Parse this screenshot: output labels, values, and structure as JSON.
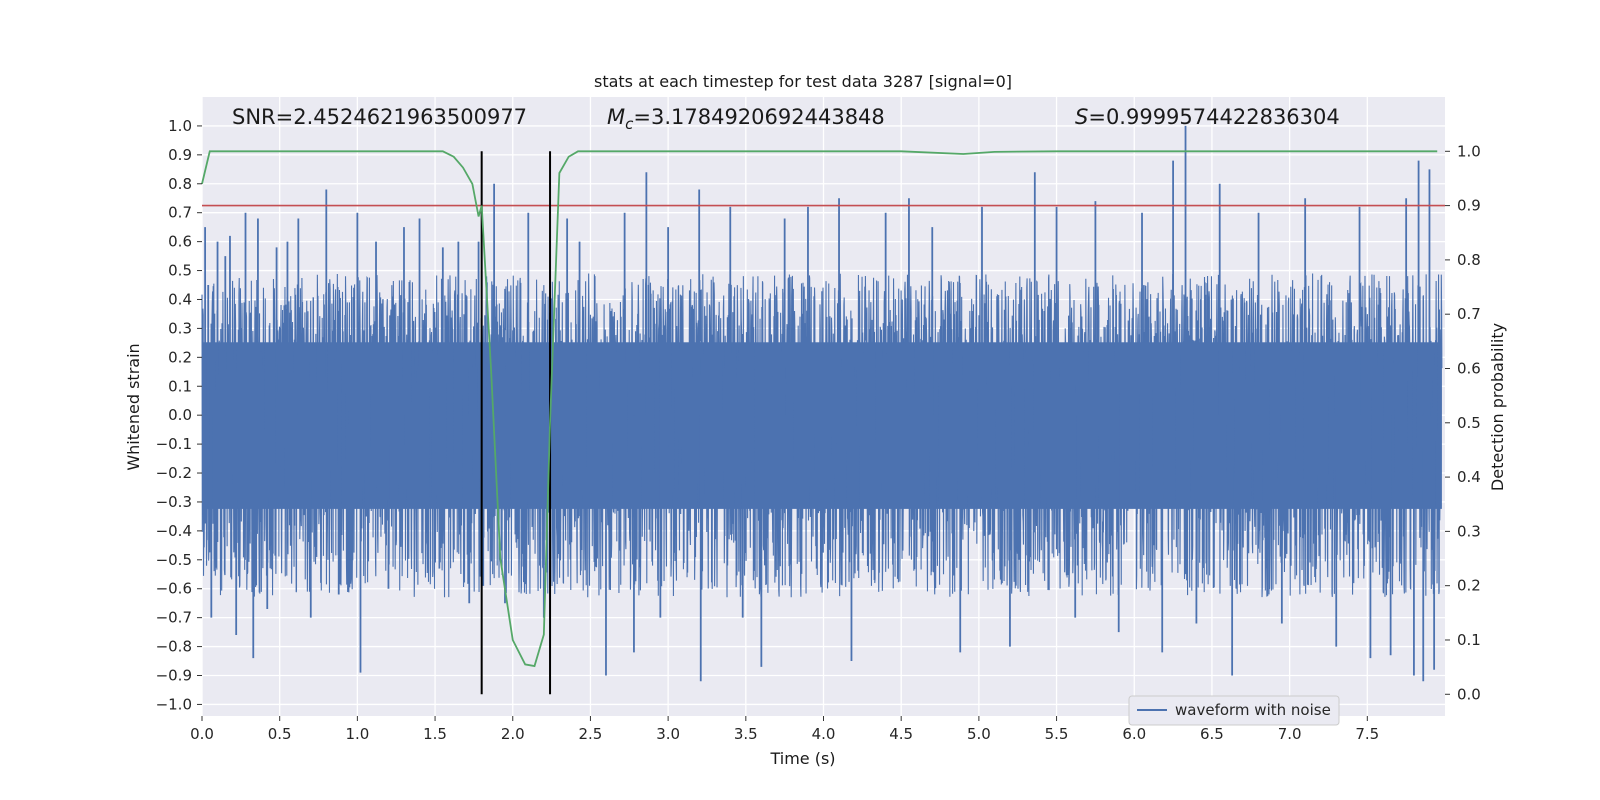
{
  "chart_data": {
    "type": "line",
    "title": "stats at each timestep for test data 3287 [signal=0]",
    "xlabel": "Time (s)",
    "ylabel": "Whitened strain",
    "y2label": "Detection probability",
    "xlim": [
      0.0,
      8.0
    ],
    "ylim": [
      -1.04,
      1.1
    ],
    "y2lim": [
      -0.04,
      1.1
    ],
    "x_ticks": [
      0.0,
      0.5,
      1.0,
      1.5,
      2.0,
      2.5,
      3.0,
      3.5,
      4.0,
      4.5,
      5.0,
      5.5,
      6.0,
      6.5,
      7.0,
      7.5
    ],
    "x_tick_labels": [
      "0.0",
      "0.5",
      "1.0",
      "1.5",
      "2.0",
      "2.5",
      "3.0",
      "3.5",
      "4.0",
      "4.5",
      "5.0",
      "5.5",
      "6.0",
      "6.5",
      "7.0",
      "7.5"
    ],
    "y_ticks": [
      -1.0,
      -0.9,
      -0.8,
      -0.7,
      -0.6,
      -0.5,
      -0.4,
      -0.3,
      -0.2,
      -0.1,
      0.0,
      0.1,
      0.2,
      0.3,
      0.4,
      0.5,
      0.6,
      0.7,
      0.8,
      0.9,
      1.0
    ],
    "y_tick_labels": [
      "−1.0",
      "−0.9",
      "−0.8",
      "−0.7",
      "−0.6",
      "−0.5",
      "−0.4",
      "−0.3",
      "−0.2",
      "−0.1",
      "0.0",
      "0.1",
      "0.2",
      "0.3",
      "0.4",
      "0.5",
      "0.6",
      "0.7",
      "0.8",
      "0.9",
      "1.0"
    ],
    "y2_ticks": [
      0.0,
      0.1,
      0.2,
      0.3,
      0.4,
      0.5,
      0.6,
      0.7,
      0.8,
      0.9,
      1.0
    ],
    "y2_tick_labels": [
      "0.0",
      "0.1",
      "0.2",
      "0.3",
      "0.4",
      "0.5",
      "0.6",
      "0.7",
      "0.8",
      "0.9",
      "1.0"
    ],
    "grid": true,
    "legend": {
      "position": "lower-right",
      "entries": [
        {
          "label": "waveform with noise",
          "color": "#4c72b0"
        }
      ]
    },
    "annotations": {
      "snr": "SNR=2.4524621963500977",
      "mc_symbol": "M",
      "mc_sub": "c",
      "mc_value": "=3.1784920692443848",
      "s_symbol": "S",
      "s_value": "=0.9999574422836304"
    },
    "threshold": {
      "axis": "y2",
      "value": 0.9,
      "color": "#c44e52"
    },
    "vertical_markers": {
      "axis": "x",
      "values": [
        1.8,
        2.24
      ],
      "color": "#000000"
    },
    "series": [
      {
        "name": "waveform with noise",
        "axis": "y",
        "color": "#4c72b0",
        "dense_samples": 4096,
        "envelope_upper": 0.35,
        "envelope_lower": -0.45,
        "peaks": [
          [
            0.02,
            0.65
          ],
          [
            0.04,
            0.45
          ],
          [
            0.06,
            -0.7
          ],
          [
            0.1,
            0.6
          ],
          [
            0.15,
            0.55
          ],
          [
            0.18,
            0.62
          ],
          [
            0.22,
            -0.76
          ],
          [
            0.28,
            0.7
          ],
          [
            0.33,
            -0.84
          ],
          [
            0.36,
            0.68
          ],
          [
            0.42,
            -0.67
          ],
          [
            0.48,
            0.58
          ],
          [
            0.55,
            0.6
          ],
          [
            0.62,
            0.68
          ],
          [
            0.7,
            -0.7
          ],
          [
            0.8,
            0.78
          ],
          [
            0.88,
            -0.62
          ],
          [
            1.0,
            0.7
          ],
          [
            1.02,
            -0.89
          ],
          [
            1.12,
            0.6
          ],
          [
            1.2,
            -0.6
          ],
          [
            1.3,
            0.65
          ],
          [
            1.4,
            0.68
          ],
          [
            1.55,
            0.58
          ],
          [
            1.65,
            0.6
          ],
          [
            1.72,
            -0.65
          ],
          [
            1.78,
            0.6
          ],
          [
            1.81,
            -0.59
          ],
          [
            1.88,
            0.8
          ],
          [
            1.95,
            -0.65
          ],
          [
            2.1,
            0.7
          ],
          [
            2.2,
            -0.7
          ],
          [
            2.35,
            0.68
          ],
          [
            2.43,
            0.6
          ],
          [
            2.6,
            -0.9
          ],
          [
            2.72,
            0.7
          ],
          [
            2.78,
            -0.82
          ],
          [
            2.86,
            0.84
          ],
          [
            2.95,
            -0.7
          ],
          [
            3.0,
            0.65
          ],
          [
            3.2,
            0.78
          ],
          [
            3.21,
            -0.92
          ],
          [
            3.4,
            0.72
          ],
          [
            3.48,
            -0.7
          ],
          [
            3.6,
            -0.87
          ],
          [
            3.75,
            0.68
          ],
          [
            3.9,
            0.72
          ],
          [
            4.1,
            0.75
          ],
          [
            4.18,
            -0.85
          ],
          [
            4.4,
            0.7
          ],
          [
            4.55,
            0.75
          ],
          [
            4.7,
            0.65
          ],
          [
            4.88,
            -0.82
          ],
          [
            5.02,
            0.72
          ],
          [
            5.2,
            -0.8
          ],
          [
            5.36,
            0.84
          ],
          [
            5.5,
            0.72
          ],
          [
            5.62,
            -0.7
          ],
          [
            5.75,
            0.74
          ],
          [
            5.9,
            -0.75
          ],
          [
            6.05,
            0.7
          ],
          [
            6.18,
            -0.82
          ],
          [
            6.25,
            0.88
          ],
          [
            6.33,
            1.0
          ],
          [
            6.4,
            -0.72
          ],
          [
            6.55,
            0.8
          ],
          [
            6.63,
            -0.9
          ],
          [
            6.8,
            0.7
          ],
          [
            6.95,
            -0.72
          ],
          [
            7.1,
            0.75
          ],
          [
            7.3,
            -0.8
          ],
          [
            7.45,
            0.72
          ],
          [
            7.52,
            -0.84
          ],
          [
            7.65,
            -0.83
          ],
          [
            7.75,
            0.75
          ],
          [
            7.8,
            -0.9
          ],
          [
            7.83,
            0.88
          ],
          [
            7.86,
            -0.92
          ],
          [
            7.9,
            0.85
          ],
          [
            7.93,
            -0.88
          ]
        ]
      },
      {
        "name": "",
        "axis": "y2",
        "color": "#55a868",
        "x": [
          0.0,
          0.05,
          0.1,
          0.3,
          0.5,
          0.8,
          1.0,
          1.2,
          1.4,
          1.55,
          1.62,
          1.68,
          1.74,
          1.78,
          1.8,
          1.86,
          1.92,
          2.0,
          2.08,
          2.14,
          2.2,
          2.24,
          2.3,
          2.36,
          2.42,
          2.5,
          2.7,
          3.0,
          3.5,
          4.0,
          4.5,
          4.9,
          5.1,
          5.5,
          6.0,
          6.5,
          7.0,
          7.5,
          7.95
        ],
        "y": [
          0.94,
          1.0,
          1.0,
          1.0,
          1.0,
          1.0,
          1.0,
          1.0,
          1.0,
          1.0,
          0.99,
          0.97,
          0.94,
          0.88,
          0.9,
          0.6,
          0.25,
          0.1,
          0.055,
          0.052,
          0.11,
          0.5,
          0.96,
          0.99,
          1.0,
          1.0,
          1.0,
          1.0,
          1.0,
          1.0,
          1.0,
          0.995,
          0.999,
          1.0,
          1.0,
          1.0,
          1.0,
          1.0,
          1.0
        ]
      }
    ]
  }
}
